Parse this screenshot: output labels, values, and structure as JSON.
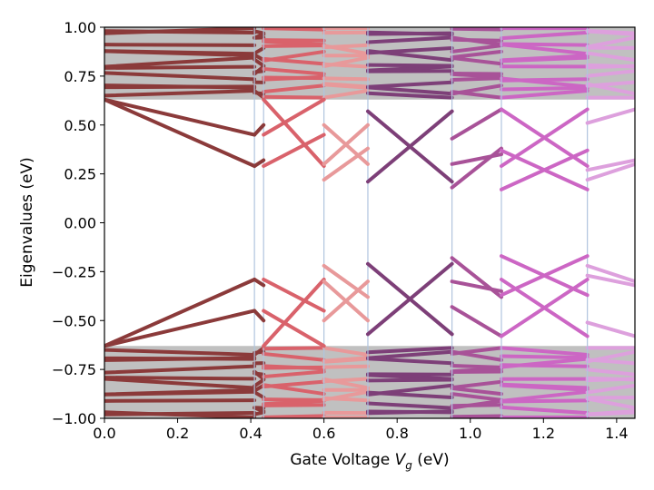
{
  "chart_data": {
    "type": "line",
    "title": "",
    "xlabel_prefix": "Gate Voltage ",
    "xlabel_var": "V",
    "xlabel_sub": "g",
    "xlabel_suffix": " (eV)",
    "ylabel": "Eigenvalues (eV)",
    "xlim": [
      0.0,
      1.45
    ],
    "ylim": [
      -1.0,
      1.0
    ],
    "xticks": [
      0.0,
      0.2,
      0.4,
      0.6,
      0.8,
      1.0,
      1.2,
      1.4
    ],
    "xtick_labels": [
      "0.0",
      "0.2",
      "0.4",
      "0.6",
      "0.8",
      "1.0",
      "1.2",
      "1.4"
    ],
    "yticks": [
      -1.0,
      -0.75,
      -0.5,
      -0.25,
      0.0,
      0.25,
      0.5,
      0.75,
      1.0
    ],
    "ytick_labels": [
      "−1.00",
      "−0.75",
      "−0.50",
      "−0.25",
      "0.00",
      "0.25",
      "0.50",
      "0.75",
      "1.00"
    ],
    "continuum_band_edge": 0.63,
    "continuum_color": "#c0c0c0",
    "segment_boundaries": [
      0.0,
      0.41,
      0.435,
      0.6,
      0.72,
      0.95,
      1.085,
      1.32,
      1.45
    ],
    "segment_colors": [
      "#8b3a3a",
      "#8b3a3a",
      "#d9626b",
      "#e8999a",
      "#7d3f78",
      "#a85298",
      "#cc66c4",
      "#dda0dd"
    ],
    "boundary_line_color": "#b0c4de",
    "series": [
      {
        "name": "gap states segment 1",
        "x": [
          0.0,
          0.41
        ],
        "upper": [
          [
            0.63,
            0.45
          ],
          [
            0.63,
            0.29
          ]
        ]
      },
      {
        "name": "gap states segment 2",
        "x": [
          0.41,
          0.435
        ],
        "upper": [
          [
            0.45,
            0.5
          ],
          [
            0.29,
            0.32
          ]
        ]
      },
      {
        "name": "gap states segment 3",
        "x": [
          0.435,
          0.6
        ],
        "upper": [
          [
            0.63,
            0.29
          ],
          [
            0.29,
            0.45
          ],
          [
            0.45,
            0.63
          ]
        ]
      },
      {
        "name": "gap states segment 4",
        "x": [
          0.6,
          0.72
        ],
        "upper": [
          [
            0.3,
            0.5
          ],
          [
            0.5,
            0.3
          ],
          [
            0.22,
            0.38
          ]
        ]
      },
      {
        "name": "gap states segment 5",
        "x": [
          0.72,
          0.95
        ],
        "upper": [
          [
            0.57,
            0.21
          ],
          [
            0.21,
            0.57
          ]
        ]
      },
      {
        "name": "gap states segment 6",
        "x": [
          0.95,
          1.085
        ],
        "upper": [
          [
            0.43,
            0.58
          ],
          [
            0.3,
            0.35
          ],
          [
            0.18,
            0.38
          ]
        ]
      },
      {
        "name": "gap states segment 7",
        "x": [
          1.085,
          1.32
        ],
        "upper": [
          [
            0.58,
            0.29
          ],
          [
            0.29,
            0.58
          ],
          [
            0.17,
            0.37
          ],
          [
            0.37,
            0.17
          ]
        ]
      },
      {
        "name": "gap states segment 8",
        "x": [
          1.32,
          1.45
        ],
        "upper": [
          [
            0.51,
            0.58
          ],
          [
            0.27,
            0.32
          ],
          [
            0.22,
            0.3
          ]
        ]
      }
    ]
  }
}
